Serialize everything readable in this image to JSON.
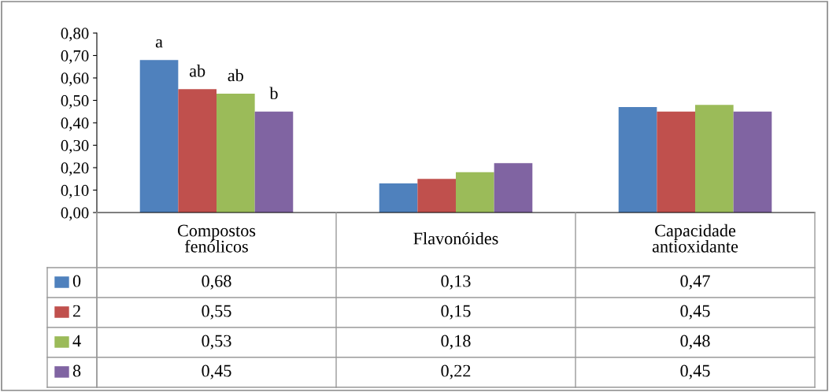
{
  "chart_data": {
    "type": "bar",
    "categories": [
      "Compostos\nfenólicos",
      "Flavonóides",
      "Capacidade\nantioxidante"
    ],
    "series": [
      {
        "name": "0",
        "color": "#4f81bd",
        "values": [
          0.68,
          0.13,
          0.47
        ],
        "value_labels": [
          "0,68",
          "0,13",
          "0,47"
        ]
      },
      {
        "name": "2",
        "color": "#c0504d",
        "values": [
          0.55,
          0.15,
          0.45
        ],
        "value_labels": [
          "0,55",
          "0,15",
          "0,45"
        ]
      },
      {
        "name": "4",
        "color": "#9bbb59",
        "values": [
          0.53,
          0.18,
          0.48
        ],
        "value_labels": [
          "0,53",
          "0,18",
          "0,48"
        ]
      },
      {
        "name": "8",
        "color": "#8064a2",
        "values": [
          0.45,
          0.22,
          0.45
        ],
        "value_labels": [
          "0,45",
          "0,22",
          "0,45"
        ]
      }
    ],
    "ylim": [
      0,
      0.8
    ],
    "yticks": [
      {
        "value": 0,
        "label": "0,00"
      },
      {
        "value": 0.1,
        "label": "0,10"
      },
      {
        "value": 0.2,
        "label": "0,20"
      },
      {
        "value": 0.3,
        "label": "0,30"
      },
      {
        "value": 0.4,
        "label": "0,40"
      },
      {
        "value": 0.5,
        "label": "0,50"
      },
      {
        "value": 0.6,
        "label": "0,60"
      },
      {
        "value": 0.7,
        "label": "0,70"
      },
      {
        "value": 0.8,
        "label": "0,80"
      }
    ],
    "annotations": [
      "a",
      "ab",
      "ab",
      "b"
    ],
    "legend": "bottom",
    "grid": false
  }
}
